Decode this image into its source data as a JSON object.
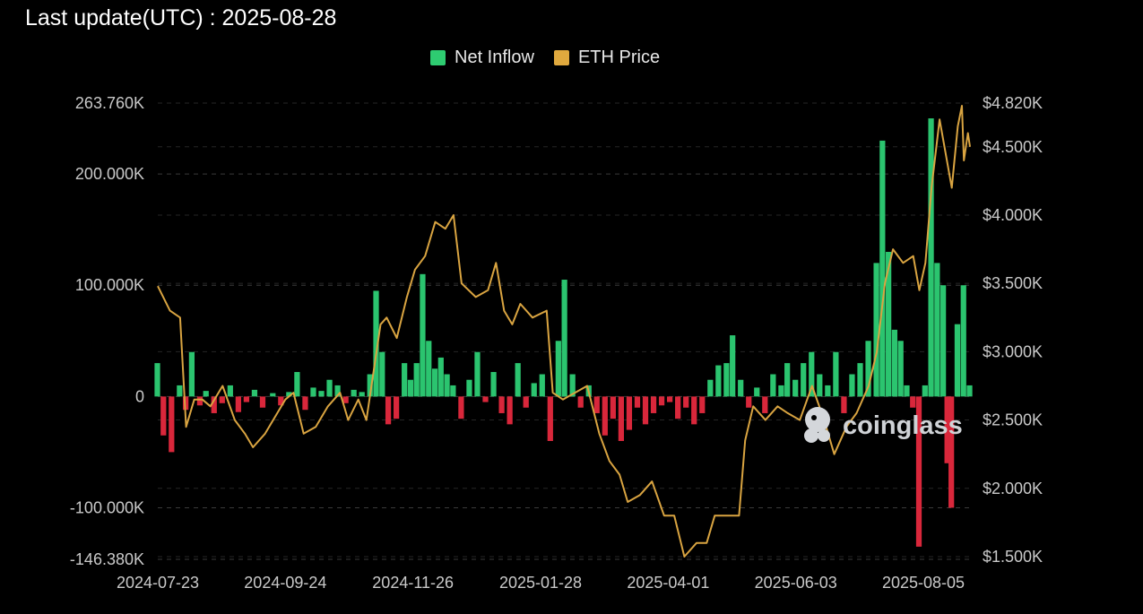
{
  "header": {
    "last_update": "Last update(UTC) : 2025-08-28"
  },
  "legend": [
    {
      "label": "Net Inflow",
      "color": "#2ecc71"
    },
    {
      "label": "ETH Price",
      "color": "#e0a93e"
    }
  ],
  "watermark": {
    "text": "coinglass",
    "icon": "coinglass-logo-icon"
  },
  "colors": {
    "positive": "#2bc46f",
    "negative": "#d9273b",
    "price": "#d9a441",
    "grid": "#3a3a3a",
    "background": "#000000"
  },
  "chart_data": {
    "type": "bar",
    "title": "",
    "xlabel": "",
    "ylabel": "",
    "grid": true,
    "legend_position": "top-center",
    "x_ticks": [
      "2024-07-23",
      "2024-09-24",
      "2024-11-26",
      "2025-01-28",
      "2025-04-01",
      "2025-06-03",
      "2025-08-05"
    ],
    "x_range": [
      "2024-07-23",
      "2025-08-28"
    ],
    "y_left_ticks": [
      {
        "value": 263760,
        "label": "263.760K"
      },
      {
        "value": 200000,
        "label": "200.000K"
      },
      {
        "value": 100000,
        "label": "100.000K"
      },
      {
        "value": 0,
        "label": "0"
      },
      {
        "value": -100000,
        "label": "-100.000K"
      },
      {
        "value": -146380,
        "label": "-146.380K"
      }
    ],
    "y_left_range": [
      -146380,
      263760
    ],
    "y_right_ticks": [
      {
        "value": 4820,
        "label": "$4.820K"
      },
      {
        "value": 4500,
        "label": "$4.500K"
      },
      {
        "value": 4000,
        "label": "$4.000K"
      },
      {
        "value": 3500,
        "label": "$3.500K"
      },
      {
        "value": 3000,
        "label": "$3.000K"
      },
      {
        "value": 2500,
        "label": "$2.500K"
      },
      {
        "value": 2000,
        "label": "$2.000K"
      },
      {
        "value": 1500,
        "label": "$1.500K"
      }
    ],
    "y_right_range": [
      1480,
      4820
    ],
    "series": [
      {
        "name": "Net Inflow",
        "kind": "bar",
        "points": [
          [
            "2024-07-23",
            30000
          ],
          [
            "2024-07-26",
            -35000
          ],
          [
            "2024-07-30",
            -50000
          ],
          [
            "2024-08-03",
            10000
          ],
          [
            "2024-08-06",
            -12000
          ],
          [
            "2024-08-09",
            40000
          ],
          [
            "2024-08-13",
            -8000
          ],
          [
            "2024-08-16",
            5000
          ],
          [
            "2024-08-20",
            -15000
          ],
          [
            "2024-08-24",
            -6000
          ],
          [
            "2024-08-28",
            10000
          ],
          [
            "2024-09-01",
            -14000
          ],
          [
            "2024-09-05",
            -5000
          ],
          [
            "2024-09-09",
            6000
          ],
          [
            "2024-09-13",
            -10000
          ],
          [
            "2024-09-18",
            3000
          ],
          [
            "2024-09-22",
            -8000
          ],
          [
            "2024-09-26",
            4000
          ],
          [
            "2024-09-30",
            22000
          ],
          [
            "2024-10-04",
            -12000
          ],
          [
            "2024-10-08",
            8000
          ],
          [
            "2024-10-12",
            5000
          ],
          [
            "2024-10-16",
            15000
          ],
          [
            "2024-10-20",
            10000
          ],
          [
            "2024-10-24",
            -6000
          ],
          [
            "2024-10-28",
            6000
          ],
          [
            "2024-11-01",
            4000
          ],
          [
            "2024-11-05",
            20000
          ],
          [
            "2024-11-08",
            95000
          ],
          [
            "2024-11-11",
            40000
          ],
          [
            "2024-11-14",
            -25000
          ],
          [
            "2024-11-18",
            -20000
          ],
          [
            "2024-11-22",
            30000
          ],
          [
            "2024-11-25",
            15000
          ],
          [
            "2024-11-28",
            30000
          ],
          [
            "2024-12-01",
            110000
          ],
          [
            "2024-12-04",
            50000
          ],
          [
            "2024-12-07",
            25000
          ],
          [
            "2024-12-10",
            35000
          ],
          [
            "2024-12-13",
            20000
          ],
          [
            "2024-12-16",
            10000
          ],
          [
            "2024-12-20",
            -20000
          ],
          [
            "2024-12-24",
            15000
          ],
          [
            "2024-12-28",
            40000
          ],
          [
            "2025-01-01",
            -5000
          ],
          [
            "2025-01-05",
            22000
          ],
          [
            "2025-01-09",
            -15000
          ],
          [
            "2025-01-13",
            -25000
          ],
          [
            "2025-01-17",
            30000
          ],
          [
            "2025-01-21",
            -10000
          ],
          [
            "2025-01-25",
            12000
          ],
          [
            "2025-01-29",
            20000
          ],
          [
            "2025-02-02",
            -40000
          ],
          [
            "2025-02-06",
            50000
          ],
          [
            "2025-02-09",
            105000
          ],
          [
            "2025-02-13",
            20000
          ],
          [
            "2025-02-17",
            -10000
          ],
          [
            "2025-02-21",
            10000
          ],
          [
            "2025-02-25",
            -15000
          ],
          [
            "2025-03-01",
            -35000
          ],
          [
            "2025-03-05",
            -20000
          ],
          [
            "2025-03-09",
            -40000
          ],
          [
            "2025-03-13",
            -30000
          ],
          [
            "2025-03-17",
            -10000
          ],
          [
            "2025-03-21",
            -25000
          ],
          [
            "2025-03-25",
            -15000
          ],
          [
            "2025-03-29",
            -8000
          ],
          [
            "2025-04-02",
            -5000
          ],
          [
            "2025-04-06",
            -20000
          ],
          [
            "2025-04-10",
            -10000
          ],
          [
            "2025-04-14",
            -25000
          ],
          [
            "2025-04-18",
            -15000
          ],
          [
            "2025-04-22",
            15000
          ],
          [
            "2025-04-26",
            28000
          ],
          [
            "2025-04-30",
            30000
          ],
          [
            "2025-05-03",
            55000
          ],
          [
            "2025-05-07",
            15000
          ],
          [
            "2025-05-11",
            -10000
          ],
          [
            "2025-05-15",
            8000
          ],
          [
            "2025-05-19",
            -15000
          ],
          [
            "2025-05-23",
            20000
          ],
          [
            "2025-05-27",
            10000
          ],
          [
            "2025-05-30",
            30000
          ],
          [
            "2025-06-03",
            15000
          ],
          [
            "2025-06-07",
            30000
          ],
          [
            "2025-06-11",
            40000
          ],
          [
            "2025-06-15",
            20000
          ],
          [
            "2025-06-19",
            10000
          ],
          [
            "2025-06-23",
            40000
          ],
          [
            "2025-06-27",
            -15000
          ],
          [
            "2025-07-01",
            20000
          ],
          [
            "2025-07-05",
            30000
          ],
          [
            "2025-07-09",
            50000
          ],
          [
            "2025-07-13",
            120000
          ],
          [
            "2025-07-16",
            230000
          ],
          [
            "2025-07-19",
            130000
          ],
          [
            "2025-07-22",
            60000
          ],
          [
            "2025-07-25",
            50000
          ],
          [
            "2025-07-28",
            10000
          ],
          [
            "2025-07-31",
            -10000
          ],
          [
            "2025-08-03",
            -135000
          ],
          [
            "2025-08-06",
            10000
          ],
          [
            "2025-08-09",
            250000
          ],
          [
            "2025-08-12",
            120000
          ],
          [
            "2025-08-15",
            100000
          ],
          [
            "2025-08-17",
            -60000
          ],
          [
            "2025-08-19",
            -100000
          ],
          [
            "2025-08-22",
            65000
          ],
          [
            "2025-08-25",
            100000
          ],
          [
            "2025-08-28",
            10000
          ]
        ]
      },
      {
        "name": "ETH Price",
        "kind": "line",
        "points": [
          [
            "2024-07-23",
            3480
          ],
          [
            "2024-07-29",
            3300
          ],
          [
            "2024-08-03",
            3250
          ],
          [
            "2024-08-06",
            2450
          ],
          [
            "2024-08-10",
            2650
          ],
          [
            "2024-08-14",
            2650
          ],
          [
            "2024-08-18",
            2600
          ],
          [
            "2024-08-24",
            2750
          ],
          [
            "2024-08-30",
            2500
          ],
          [
            "2024-09-04",
            2400
          ],
          [
            "2024-09-08",
            2300
          ],
          [
            "2024-09-14",
            2400
          ],
          [
            "2024-09-20",
            2550
          ],
          [
            "2024-09-24",
            2650
          ],
          [
            "2024-09-28",
            2700
          ],
          [
            "2024-10-03",
            2400
          ],
          [
            "2024-10-09",
            2450
          ],
          [
            "2024-10-15",
            2600
          ],
          [
            "2024-10-21",
            2700
          ],
          [
            "2024-10-25",
            2500
          ],
          [
            "2024-10-30",
            2650
          ],
          [
            "2024-11-03",
            2500
          ],
          [
            "2024-11-06",
            2800
          ],
          [
            "2024-11-10",
            3200
          ],
          [
            "2024-11-13",
            3250
          ],
          [
            "2024-11-18",
            3100
          ],
          [
            "2024-11-23",
            3400
          ],
          [
            "2024-11-27",
            3600
          ],
          [
            "2024-12-02",
            3700
          ],
          [
            "2024-12-07",
            3950
          ],
          [
            "2024-12-12",
            3900
          ],
          [
            "2024-12-16",
            4000
          ],
          [
            "2024-12-20",
            3500
          ],
          [
            "2024-12-27",
            3400
          ],
          [
            "2025-01-02",
            3450
          ],
          [
            "2025-01-06",
            3650
          ],
          [
            "2025-01-10",
            3300
          ],
          [
            "2025-01-14",
            3200
          ],
          [
            "2025-01-18",
            3350
          ],
          [
            "2025-01-24",
            3250
          ],
          [
            "2025-01-31",
            3300
          ],
          [
            "2025-02-03",
            2700
          ],
          [
            "2025-02-08",
            2650
          ],
          [
            "2025-02-14",
            2700
          ],
          [
            "2025-02-20",
            2750
          ],
          [
            "2025-02-26",
            2400
          ],
          [
            "2025-03-03",
            2200
          ],
          [
            "2025-03-08",
            2100
          ],
          [
            "2025-03-12",
            1900
          ],
          [
            "2025-03-18",
            1950
          ],
          [
            "2025-03-24",
            2050
          ],
          [
            "2025-03-30",
            1800
          ],
          [
            "2025-04-04",
            1800
          ],
          [
            "2025-04-09",
            1500
          ],
          [
            "2025-04-15",
            1600
          ],
          [
            "2025-04-20",
            1600
          ],
          [
            "2025-04-24",
            1800
          ],
          [
            "2025-04-30",
            1800
          ],
          [
            "2025-05-06",
            1800
          ],
          [
            "2025-05-09",
            2350
          ],
          [
            "2025-05-13",
            2600
          ],
          [
            "2025-05-19",
            2500
          ],
          [
            "2025-05-25",
            2600
          ],
          [
            "2025-05-30",
            2550
          ],
          [
            "2025-06-05",
            2500
          ],
          [
            "2025-06-11",
            2750
          ],
          [
            "2025-06-17",
            2500
          ],
          [
            "2025-06-22",
            2250
          ],
          [
            "2025-06-28",
            2450
          ],
          [
            "2025-07-03",
            2550
          ],
          [
            "2025-07-09",
            2750
          ],
          [
            "2025-07-13",
            3000
          ],
          [
            "2025-07-17",
            3500
          ],
          [
            "2025-07-21",
            3750
          ],
          [
            "2025-07-26",
            3650
          ],
          [
            "2025-07-31",
            3700
          ],
          [
            "2025-08-03",
            3450
          ],
          [
            "2025-08-06",
            3650
          ],
          [
            "2025-08-09",
            4200
          ],
          [
            "2025-08-13",
            4700
          ],
          [
            "2025-08-16",
            4450
          ],
          [
            "2025-08-19",
            4200
          ],
          [
            "2025-08-22",
            4650
          ],
          [
            "2025-08-24",
            4800
          ],
          [
            "2025-08-25",
            4400
          ],
          [
            "2025-08-27",
            4600
          ],
          [
            "2025-08-28",
            4500
          ]
        ]
      }
    ]
  }
}
